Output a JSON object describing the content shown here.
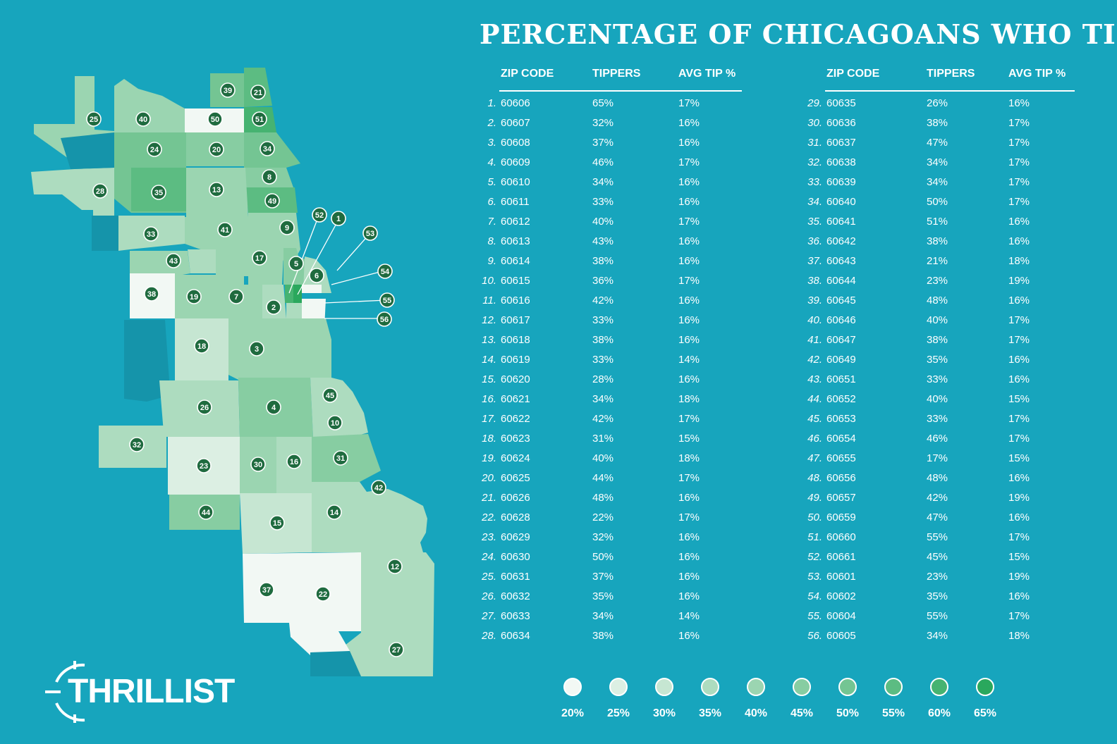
{
  "title": "PERCENTAGE OF CHICAGOANS WHO TIP",
  "columns": {
    "zip": "ZIP CODE",
    "tippers": "TIPPERS",
    "avg": "AVG TIP %"
  },
  "rows_left": [
    {
      "rank": "1.",
      "zip": "60606",
      "tippers": "65%",
      "avg": "17%"
    },
    {
      "rank": "2.",
      "zip": "60607",
      "tippers": "32%",
      "avg": "16%"
    },
    {
      "rank": "3.",
      "zip": "60608",
      "tippers": "37%",
      "avg": "16%"
    },
    {
      "rank": "4.",
      "zip": "60609",
      "tippers": "46%",
      "avg": "17%"
    },
    {
      "rank": "5.",
      "zip": "60610",
      "tippers": "34%",
      "avg": "16%"
    },
    {
      "rank": "6.",
      "zip": "60611",
      "tippers": "33%",
      "avg": "16%"
    },
    {
      "rank": "7.",
      "zip": "60612",
      "tippers": "40%",
      "avg": "17%"
    },
    {
      "rank": "8.",
      "zip": "60613",
      "tippers": "43%",
      "avg": "16%"
    },
    {
      "rank": "9.",
      "zip": "60614",
      "tippers": "38%",
      "avg": "16%"
    },
    {
      "rank": "10.",
      "zip": "60615",
      "tippers": "36%",
      "avg": "17%"
    },
    {
      "rank": "11.",
      "zip": "60616",
      "tippers": "42%",
      "avg": "16%"
    },
    {
      "rank": "12.",
      "zip": "60617",
      "tippers": "33%",
      "avg": "16%"
    },
    {
      "rank": "13.",
      "zip": "60618",
      "tippers": "38%",
      "avg": "16%"
    },
    {
      "rank": "14.",
      "zip": "60619",
      "tippers": "33%",
      "avg": "14%"
    },
    {
      "rank": "15.",
      "zip": "60620",
      "tippers": "28%",
      "avg": "16%"
    },
    {
      "rank": "16.",
      "zip": "60621",
      "tippers": "34%",
      "avg": "18%"
    },
    {
      "rank": "17.",
      "zip": "60622",
      "tippers": "42%",
      "avg": "17%"
    },
    {
      "rank": "18.",
      "zip": "60623",
      "tippers": "31%",
      "avg": "15%"
    },
    {
      "rank": "19.",
      "zip": "60624",
      "tippers": "40%",
      "avg": "18%"
    },
    {
      "rank": "20.",
      "zip": "60625",
      "tippers": "44%",
      "avg": "17%"
    },
    {
      "rank": "21.",
      "zip": "60626",
      "tippers": "48%",
      "avg": "16%"
    },
    {
      "rank": "22.",
      "zip": "60628",
      "tippers": "22%",
      "avg": "17%"
    },
    {
      "rank": "23.",
      "zip": "60629",
      "tippers": "32%",
      "avg": "16%"
    },
    {
      "rank": "24.",
      "zip": "60630",
      "tippers": "50%",
      "avg": "16%"
    },
    {
      "rank": "25.",
      "zip": "60631",
      "tippers": "37%",
      "avg": "16%"
    },
    {
      "rank": "26.",
      "zip": "60632",
      "tippers": "35%",
      "avg": "16%"
    },
    {
      "rank": "27.",
      "zip": "60633",
      "tippers": "34%",
      "avg": "14%"
    },
    {
      "rank": "28.",
      "zip": "60634",
      "tippers": "38%",
      "avg": "16%"
    }
  ],
  "rows_right": [
    {
      "rank": "29.",
      "zip": "60635",
      "tippers": "26%",
      "avg": "16%"
    },
    {
      "rank": "30.",
      "zip": "60636",
      "tippers": "38%",
      "avg": "17%"
    },
    {
      "rank": "31.",
      "zip": "60637",
      "tippers": "47%",
      "avg": "17%"
    },
    {
      "rank": "32.",
      "zip": "60638",
      "tippers": "34%",
      "avg": "17%"
    },
    {
      "rank": "33.",
      "zip": "60639",
      "tippers": "34%",
      "avg": "17%"
    },
    {
      "rank": "34.",
      "zip": "60640",
      "tippers": "50%",
      "avg": "17%"
    },
    {
      "rank": "35.",
      "zip": "60641",
      "tippers": "51%",
      "avg": "16%"
    },
    {
      "rank": "36.",
      "zip": "60642",
      "tippers": "38%",
      "avg": "16%"
    },
    {
      "rank": "37.",
      "zip": "60643",
      "tippers": "21%",
      "avg": "18%"
    },
    {
      "rank": "38.",
      "zip": "60644",
      "tippers": "23%",
      "avg": "19%"
    },
    {
      "rank": "39.",
      "zip": "60645",
      "tippers": "48%",
      "avg": "16%"
    },
    {
      "rank": "40.",
      "zip": "60646",
      "tippers": "40%",
      "avg": "17%"
    },
    {
      "rank": "41.",
      "zip": "60647",
      "tippers": "38%",
      "avg": "17%"
    },
    {
      "rank": "42.",
      "zip": "60649",
      "tippers": "35%",
      "avg": "16%"
    },
    {
      "rank": "43.",
      "zip": "60651",
      "tippers": "33%",
      "avg": "16%"
    },
    {
      "rank": "44.",
      "zip": "60652",
      "tippers": "40%",
      "avg": "15%"
    },
    {
      "rank": "45.",
      "zip": "60653",
      "tippers": "33%",
      "avg": "17%"
    },
    {
      "rank": "46.",
      "zip": "60654",
      "tippers": "46%",
      "avg": "17%"
    },
    {
      "rank": "47.",
      "zip": "60655",
      "tippers": "17%",
      "avg": "15%"
    },
    {
      "rank": "48.",
      "zip": "60656",
      "tippers": "48%",
      "avg": "16%"
    },
    {
      "rank": "49.",
      "zip": "60657",
      "tippers": "42%",
      "avg": "19%"
    },
    {
      "rank": "50.",
      "zip": "60659",
      "tippers": "47%",
      "avg": "16%"
    },
    {
      "rank": "51.",
      "zip": "60660",
      "tippers": "55%",
      "avg": "17%"
    },
    {
      "rank": "52.",
      "zip": "60661",
      "tippers": "45%",
      "avg": "15%"
    },
    {
      "rank": "53.",
      "zip": "60601",
      "tippers": "23%",
      "avg": "19%"
    },
    {
      "rank": "54.",
      "zip": "60602",
      "tippers": "35%",
      "avg": "16%"
    },
    {
      "rank": "55.",
      "zip": "60604",
      "tippers": "55%",
      "avg": "17%"
    },
    {
      "rank": "56.",
      "zip": "60605",
      "tippers": "34%",
      "avg": "18%"
    }
  ],
  "legend": [
    {
      "label": "20%",
      "color": "#f2f8f4"
    },
    {
      "label": "25%",
      "color": "#dcefe3"
    },
    {
      "label": "30%",
      "color": "#c6e6d2"
    },
    {
      "label": "35%",
      "color": "#addcbf"
    },
    {
      "label": "40%",
      "color": "#9bd5b1"
    },
    {
      "label": "45%",
      "color": "#87cda2"
    },
    {
      "label": "50%",
      "color": "#74c593"
    },
    {
      "label": "55%",
      "color": "#5cbc82"
    },
    {
      "label": "60%",
      "color": "#46b371"
    },
    {
      "label": "65%",
      "color": "#2aa85d"
    }
  ],
  "colors": {
    "background": "#17a5bd",
    "marker": "#1f6b3f",
    "park": "#1594aa"
  },
  "brand": {
    "name": "THRILLIST",
    "icon": "crosshair-icon"
  }
}
